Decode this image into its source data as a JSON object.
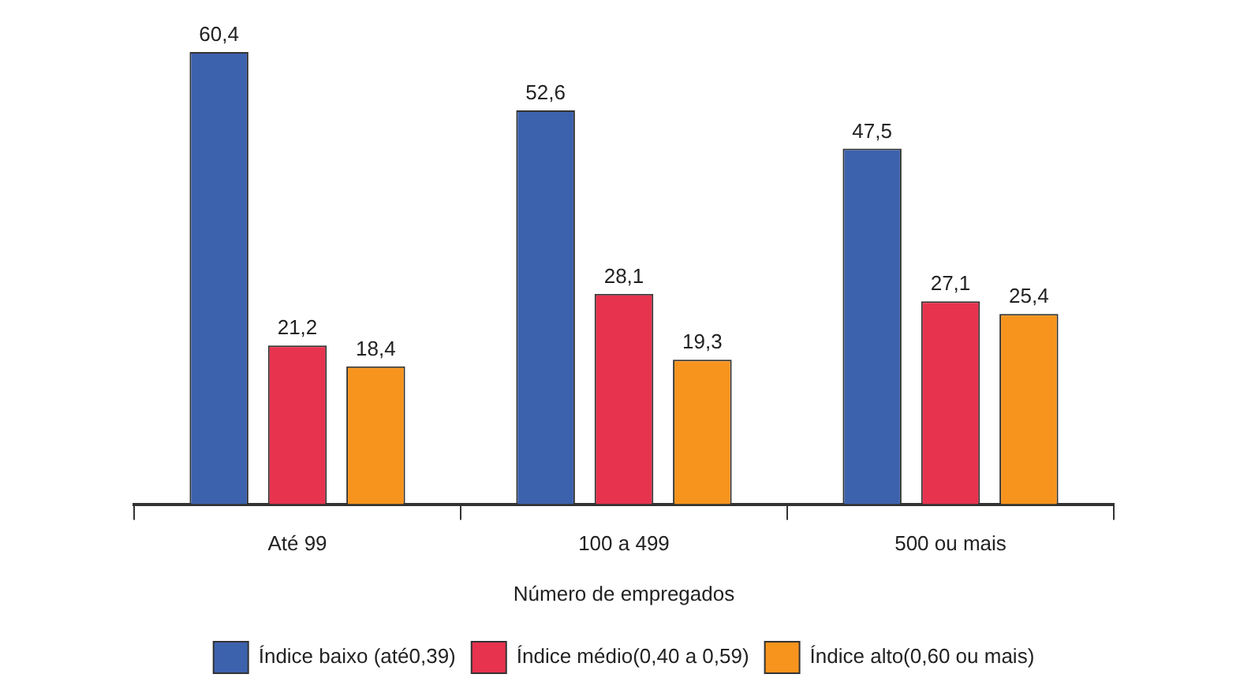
{
  "chart_data": {
    "type": "bar",
    "xlabel": "Número de empregados",
    "categories": [
      "Até 99",
      "100 a 499",
      "500 ou mais"
    ],
    "series": [
      {
        "name": "Índice baixo (até0,39)",
        "color": "#3d62ad",
        "values": [
          60.4,
          52.6,
          47.5
        ],
        "value_labels": [
          "60,4",
          "52,6",
          "47,5"
        ]
      },
      {
        "name": "Índice médio(0,40 a 0,59)",
        "color": "#e8334f",
        "values": [
          21.2,
          28.1,
          27.1
        ],
        "value_labels": [
          "21,2",
          "28,1",
          "27,1"
        ]
      },
      {
        "name": "Índice alto(0,60 ou mais)",
        "color": "#f7941d",
        "values": [
          18.4,
          19.3,
          25.4
        ],
        "value_labels": [
          "18,4",
          "19,3",
          "25,4"
        ]
      }
    ],
    "legend": "bottom",
    "grid": false
  }
}
